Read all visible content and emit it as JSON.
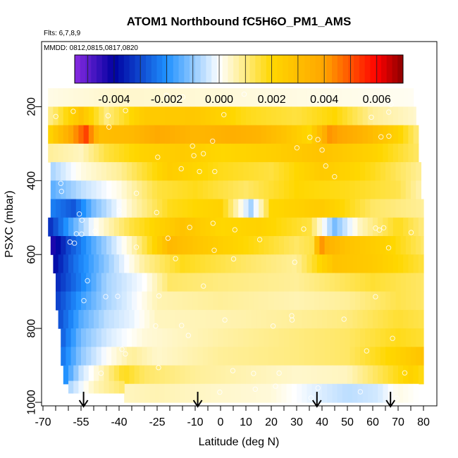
{
  "chart_data": {
    "type": "heatmap",
    "title": "ATOM1 Northbound fC5H6O_PM1_AMS",
    "subtitle_flights": "Flts: 6,7,8,9",
    "subtitle_dates": "MMDD: 0812,0815,0817,0820",
    "xlabel": "Latitude (deg N)",
    "ylabel": "PSXC (mbar)",
    "xlim": [
      -70,
      80
    ],
    "ylim": [
      1000,
      100
    ],
    "x_ticks": [
      -70,
      -55,
      -40,
      -25,
      -10,
      0,
      10,
      20,
      30,
      40,
      50,
      60,
      70,
      80
    ],
    "y_ticks": [
      200,
      400,
      600,
      800,
      1000
    ],
    "colorbar": {
      "range": [
        -0.0055,
        0.007
      ],
      "ticks": [
        -0.004,
        -0.002,
        0.0,
        0.002,
        0.004,
        0.006
      ],
      "tick_labels": [
        "-0.004",
        "-0.002",
        "0.000",
        "0.002",
        "0.004",
        "0.006"
      ],
      "colors": [
        "#8a2be2",
        "#0000a0",
        "#1e90ff",
        "#ffffff",
        "#ffd700",
        "#ffa500",
        "#ff0000",
        "#8b0000"
      ]
    },
    "profile_markers_lat": [
      -54,
      -9,
      38,
      67
    ],
    "pressure_levels": [
      175,
      225,
      275,
      325,
      375,
      425,
      475,
      525,
      575,
      625,
      675,
      725,
      775,
      825,
      875,
      925,
      975
    ],
    "lat_bins": [
      -68,
      -64,
      -60,
      -56,
      -52,
      -48,
      -44,
      -40,
      -36,
      -32,
      -28,
      -24,
      -20,
      -16,
      -12,
      -8,
      -4,
      0,
      4,
      8,
      12,
      16,
      20,
      24,
      28,
      32,
      36,
      40,
      44,
      48,
      52,
      56,
      60,
      64,
      68,
      72,
      76,
      80
    ],
    "row_profiles": [
      {
        "level": 175,
        "lat_min": -68,
        "lat_max": 76,
        "anchors": [
          [
            -68,
            0.0002
          ],
          [
            -40,
            0.0004
          ],
          [
            0,
            0.0003
          ],
          [
            40,
            0.0002
          ],
          [
            76,
            0.0001
          ]
        ]
      },
      {
        "level": 225,
        "lat_min": -68,
        "lat_max": 77,
        "anchors": [
          [
            -68,
            0.0008
          ],
          [
            -55,
            0.0028
          ],
          [
            -45,
            0.001
          ],
          [
            -30,
            0.0025
          ],
          [
            -10,
            0.0026
          ],
          [
            10,
            0.0018
          ],
          [
            30,
            0.0015
          ],
          [
            45,
            0.002
          ],
          [
            60,
            0.0008
          ],
          [
            77,
            0.0004
          ]
        ]
      },
      {
        "level": 275,
        "lat_min": -68,
        "lat_max": 78,
        "anchors": [
          [
            -68,
            0.002
          ],
          [
            -56,
            0.0045
          ],
          [
            -53,
            0.0052
          ],
          [
            -48,
            0.003
          ],
          [
            -35,
            0.0032
          ],
          [
            -25,
            0.0038
          ],
          [
            -10,
            0.0033
          ],
          [
            5,
            0.0036
          ],
          [
            15,
            0.0034
          ],
          [
            25,
            0.0028
          ],
          [
            35,
            0.002
          ],
          [
            43,
            0.0042
          ],
          [
            55,
            0.0035
          ],
          [
            70,
            0.0022
          ],
          [
            78,
            0.001
          ]
        ]
      },
      {
        "level": 325,
        "lat_min": -68,
        "lat_max": 78,
        "anchors": [
          [
            -68,
            0.0008
          ],
          [
            -55,
            0.0005
          ],
          [
            -45,
            0.0015
          ],
          [
            -30,
            0.0022
          ],
          [
            -15,
            0.0025
          ],
          [
            0,
            0.002
          ],
          [
            20,
            0.0023
          ],
          [
            40,
            0.0028
          ],
          [
            60,
            0.0022
          ],
          [
            78,
            0.0012
          ]
        ]
      },
      {
        "level": 375,
        "lat_min": -67,
        "lat_max": 79,
        "anchors": [
          [
            -67,
            -0.0008
          ],
          [
            -55,
            0.0002
          ],
          [
            -40,
            0.0008
          ],
          [
            -20,
            0.0024
          ],
          [
            0,
            0.0018
          ],
          [
            20,
            0.0015
          ],
          [
            40,
            0.0025
          ],
          [
            60,
            0.0018
          ],
          [
            79,
            0.0008
          ]
        ]
      },
      {
        "level": 425,
        "lat_min": -67,
        "lat_max": 79,
        "anchors": [
          [
            -67,
            -0.0015
          ],
          [
            -55,
            -0.0006
          ],
          [
            -40,
            0.0002
          ],
          [
            -25,
            0.0015
          ],
          [
            -10,
            0.0018
          ],
          [
            10,
            0.0012
          ],
          [
            30,
            0.002
          ],
          [
            50,
            0.0018
          ],
          [
            70,
            0.0014
          ],
          [
            79,
            0.0006
          ]
        ]
      },
      {
        "level": 475,
        "lat_min": -67,
        "lat_max": 80,
        "anchors": [
          [
            -67,
            -0.0022
          ],
          [
            -58,
            -0.0028
          ],
          [
            -50,
            -0.0012
          ],
          [
            -35,
            0.0005
          ],
          [
            -20,
            0.0018
          ],
          [
            0,
            0.0022
          ],
          [
            12,
            -0.0008
          ],
          [
            20,
            0.002
          ],
          [
            40,
            0.0025
          ],
          [
            60,
            0.0012
          ],
          [
            80,
            0.0008
          ]
        ]
      },
      {
        "level": 525,
        "lat_min": -68,
        "lat_max": 80,
        "anchors": [
          [
            -68,
            -0.0035
          ],
          [
            -60,
            -0.0018
          ],
          [
            -50,
            0.0
          ],
          [
            -35,
            0.0015
          ],
          [
            -15,
            0.0028
          ],
          [
            0,
            0.002
          ],
          [
            15,
            0.0022
          ],
          [
            35,
            0.0015
          ],
          [
            45,
            -0.0012
          ],
          [
            55,
            0.0005
          ],
          [
            70,
            0.0018
          ],
          [
            80,
            0.001
          ]
        ]
      },
      {
        "level": 575,
        "lat_min": -67,
        "lat_max": 80,
        "anchors": [
          [
            -67,
            -0.0045
          ],
          [
            -60,
            -0.003
          ],
          [
            -50,
            -0.0015
          ],
          [
            -35,
            0.0005
          ],
          [
            -20,
            0.0032
          ],
          [
            -5,
            0.0025
          ],
          [
            15,
            0.0018
          ],
          [
            30,
            0.0012
          ],
          [
            37,
            0.0015
          ],
          [
            39,
            0.0045
          ],
          [
            42,
            0.0035
          ],
          [
            50,
            0.0028
          ],
          [
            65,
            0.0022
          ],
          [
            80,
            0.0012
          ]
        ]
      },
      {
        "level": 625,
        "lat_min": -66,
        "lat_max": 80,
        "anchors": [
          [
            -66,
            -0.004
          ],
          [
            -58,
            -0.0025
          ],
          [
            -45,
            -0.001
          ],
          [
            -30,
            0.0008
          ],
          [
            -15,
            0.0018
          ],
          [
            10,
            0.0012
          ],
          [
            30,
            0.0008
          ],
          [
            45,
            0.0028
          ],
          [
            60,
            0.0025
          ],
          [
            80,
            0.0015
          ]
        ]
      },
      {
        "level": 675,
        "lat_min": -65,
        "lat_max": 80,
        "anchors": [
          [
            -65,
            -0.0035
          ],
          [
            -55,
            -0.0022
          ],
          [
            -45,
            -0.0008
          ],
          [
            -30,
            0.0
          ],
          [
            -20,
            0.0012
          ],
          [
            0,
            0.001
          ],
          [
            30,
            0.0008
          ],
          [
            45,
            0.0012
          ],
          [
            60,
            0.0016
          ],
          [
            80,
            0.0012
          ]
        ]
      },
      {
        "level": 725,
        "lat_min": -65,
        "lat_max": 80,
        "anchors": [
          [
            -65,
            -0.0032
          ],
          [
            -55,
            -0.0018
          ],
          [
            -45,
            -0.0008
          ],
          [
            -35,
            -0.0002
          ],
          [
            -25,
            0.0006
          ],
          [
            0,
            0.0008
          ],
          [
            30,
            0.0006
          ],
          [
            50,
            0.0008
          ],
          [
            70,
            0.0014
          ],
          [
            80,
            0.0012
          ]
        ]
      },
      {
        "level": 775,
        "lat_min": -64,
        "lat_max": 80,
        "anchors": [
          [
            -64,
            -0.003
          ],
          [
            -55,
            -0.0015
          ],
          [
            -45,
            -0.0006
          ],
          [
            -35,
            -0.0002
          ],
          [
            -25,
            0.0005
          ],
          [
            0,
            0.0006
          ],
          [
            30,
            0.0008
          ],
          [
            50,
            0.001
          ],
          [
            70,
            0.0016
          ],
          [
            80,
            0.0014
          ]
        ]
      },
      {
        "level": 825,
        "lat_min": -63,
        "lat_max": 80,
        "anchors": [
          [
            -63,
            -0.0028
          ],
          [
            -55,
            -0.0012
          ],
          [
            -45,
            -0.0004
          ],
          [
            -30,
            0.0003
          ],
          [
            0,
            0.0007
          ],
          [
            30,
            0.001
          ],
          [
            50,
            0.0012
          ],
          [
            70,
            0.0018
          ],
          [
            80,
            0.0016
          ]
        ]
      },
      {
        "level": 875,
        "lat_min": -63,
        "lat_max": 80,
        "anchors": [
          [
            -63,
            -0.0025
          ],
          [
            -55,
            -0.001
          ],
          [
            -45,
            0.0
          ],
          [
            -35,
            0.0008
          ],
          [
            -25,
            0.0004
          ],
          [
            0,
            0.0008
          ],
          [
            30,
            0.001
          ],
          [
            50,
            0.0012
          ],
          [
            70,
            0.0022
          ],
          [
            80,
            0.0028
          ]
        ]
      },
      {
        "level": 925,
        "lat_min": -62,
        "lat_max": 80,
        "anchors": [
          [
            -62,
            -0.0022
          ],
          [
            -55,
            -0.0005
          ],
          [
            -45,
            0.0008
          ],
          [
            -38,
            0.0018
          ],
          [
            -30,
            0.0012
          ],
          [
            -10,
            0.0008
          ],
          [
            10,
            0.0006
          ],
          [
            30,
            0.0004
          ],
          [
            50,
            0.0005
          ],
          [
            65,
            0.0015
          ],
          [
            75,
            0.0022
          ],
          [
            80,
            0.0018
          ]
        ]
      },
      {
        "level": 975,
        "lat_min": -38,
        "lat_max": 78,
        "anchors": [
          [
            -38,
            0.0005
          ],
          [
            -25,
            0.0006
          ],
          [
            0,
            0.0004
          ],
          [
            20,
            0.0003
          ],
          [
            35,
            -0.0002
          ],
          [
            50,
            -0.0006
          ],
          [
            62,
            -0.0004
          ],
          [
            70,
            0.0002
          ],
          [
            78,
            0.0
          ]
        ]
      }
    ],
    "extra_strip_segments": [
      {
        "level": 950,
        "lat_min": -60,
        "lat_max": -38,
        "anchors": [
          [
            -60,
            -0.0008
          ],
          [
            -50,
            0.0005
          ],
          [
            -38,
            0.0012
          ]
        ]
      }
    ],
    "sample_point_count": 90
  }
}
